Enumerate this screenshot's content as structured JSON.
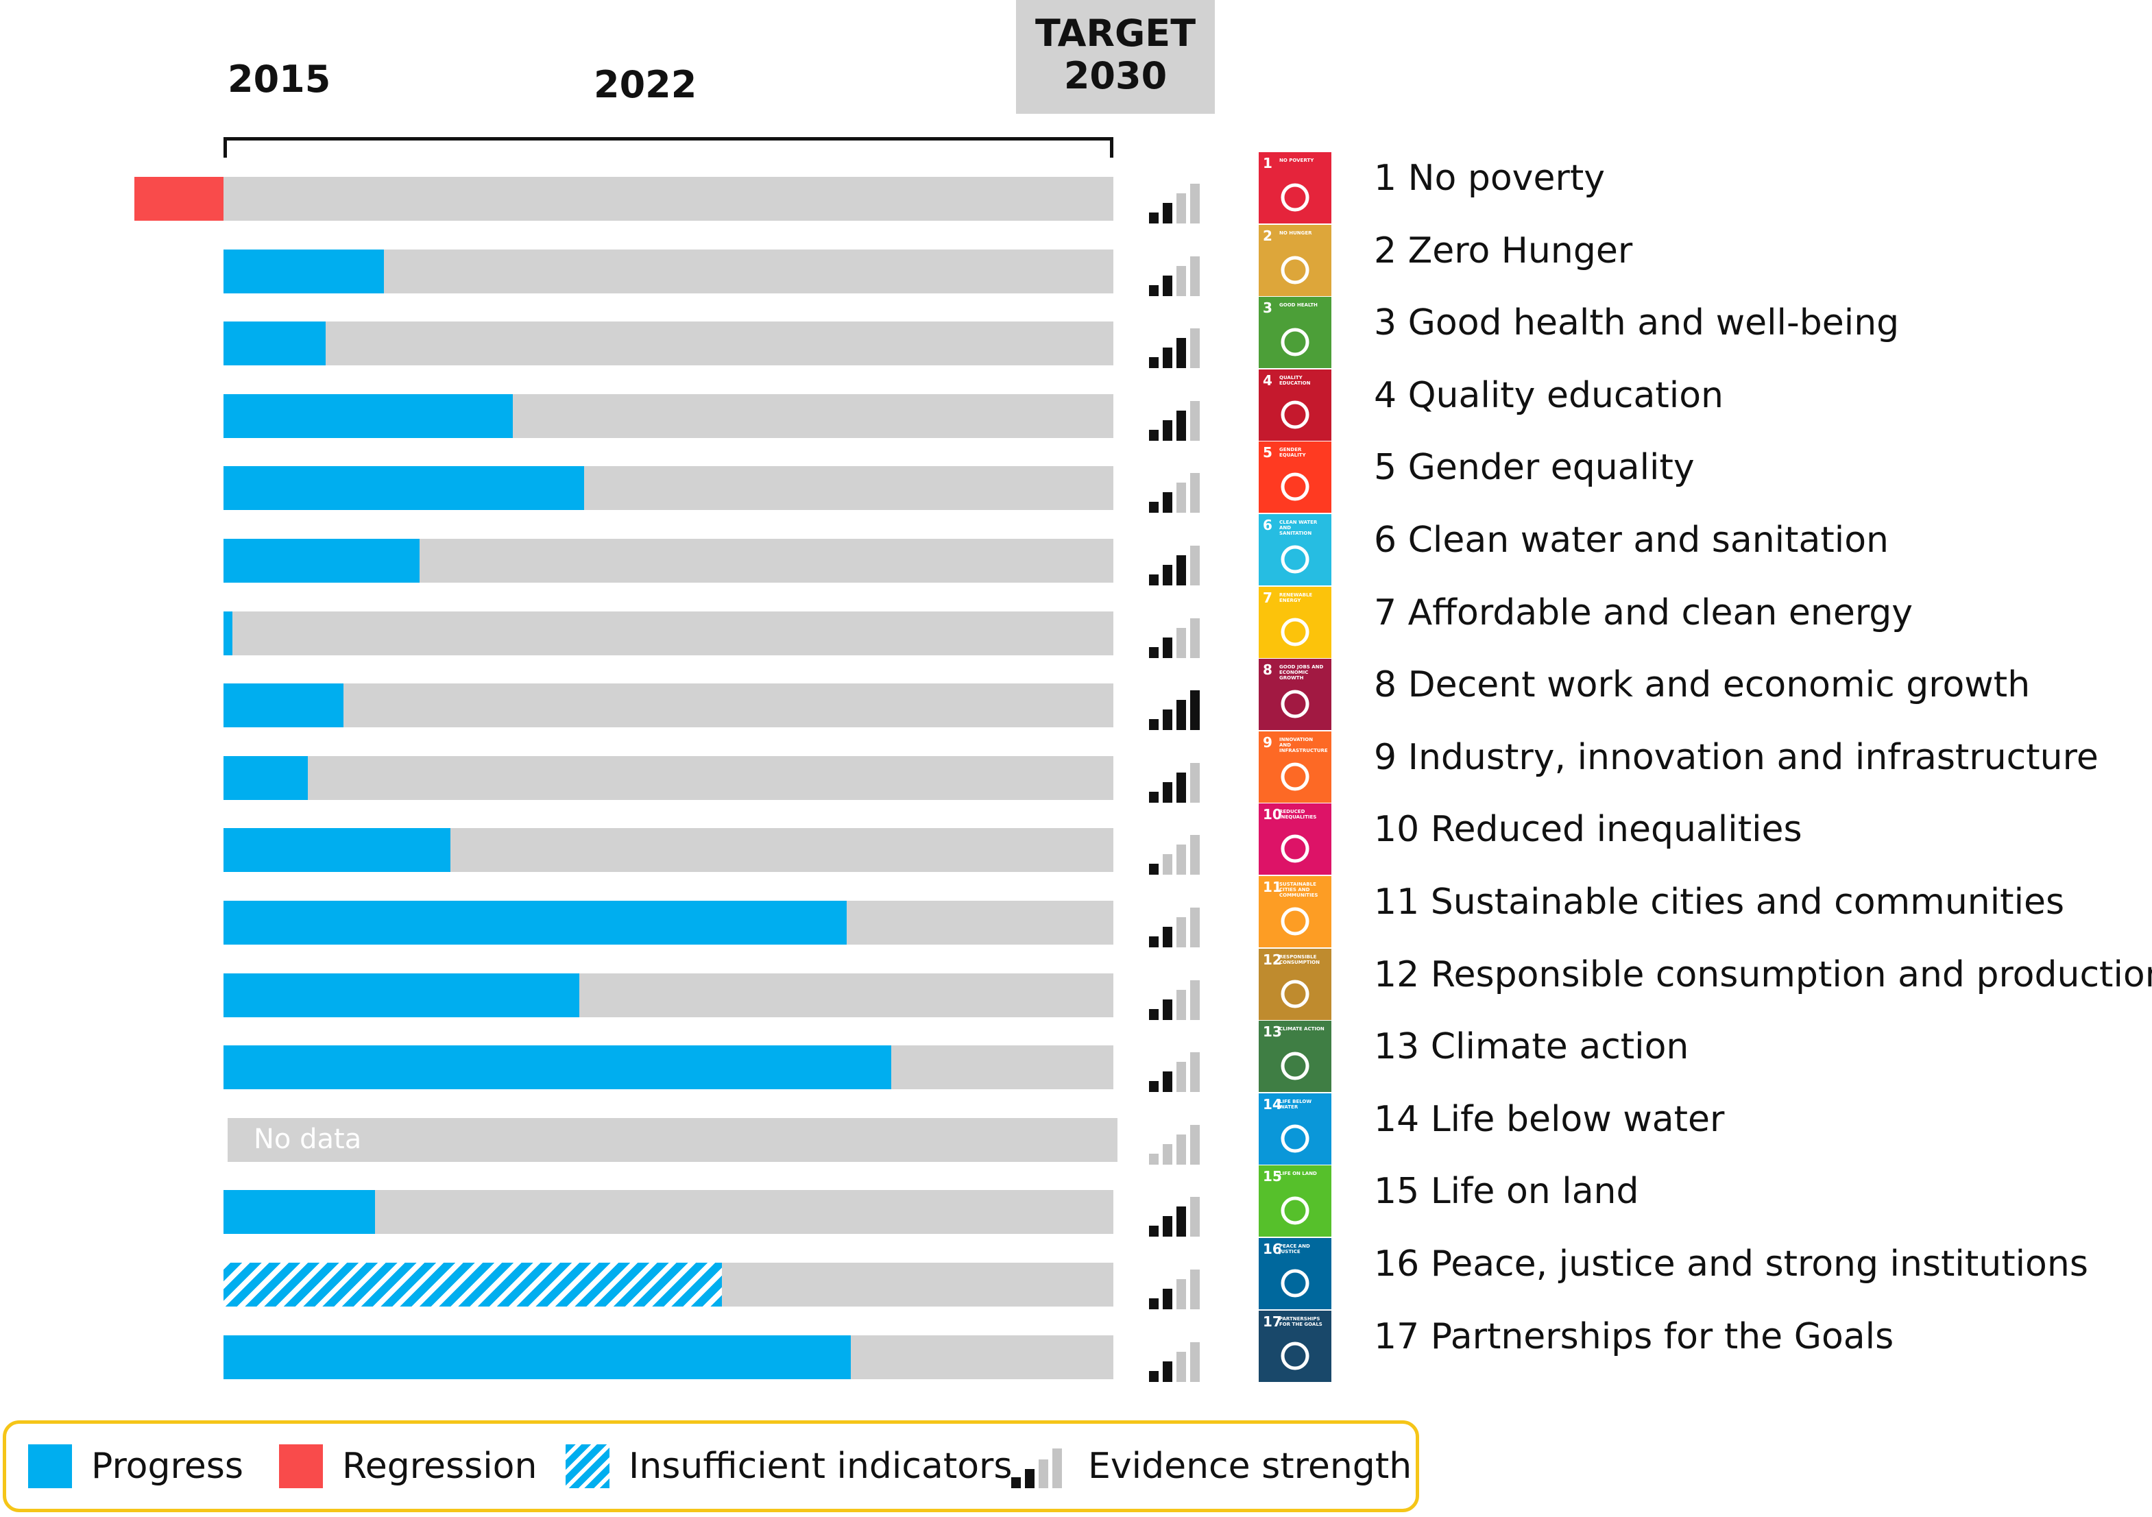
{
  "chart_data": {
    "type": "bar",
    "header": {
      "start": "2015",
      "mid": "2022",
      "target_line1": "TARGET",
      "target_line2": "2030"
    },
    "categories": [
      "1 No poverty",
      "2 Zero Hunger",
      "3 Good health and well-being",
      "4 Quality education",
      "5 Gender equality",
      "6 Clean water and sanitation",
      "7 Affordable and clean energy",
      "8 Decent work and economic growth",
      "9 Industry, innovation and infrastructure",
      "10 Reduced inequalities",
      "11 Sustainable cities and communities",
      "12 Responsible consumption and production",
      "13 Climate action",
      "14 Life below water",
      "15 Life on land",
      "16 Peace, justice and strong institutions",
      "17 Partnerships for the Goals"
    ],
    "values": [
      -4,
      18,
      11.5,
      32.5,
      40.5,
      22,
      1,
      13.5,
      9.5,
      25.5,
      70,
      40,
      75,
      null,
      17,
      56,
      70.5
    ],
    "status": [
      "regression",
      "progress",
      "progress",
      "progress",
      "progress",
      "progress",
      "progress",
      "progress",
      "progress",
      "progress",
      "progress",
      "progress",
      "progress",
      "nodata",
      "progress",
      "insufficient",
      "progress"
    ],
    "evidence_strength": [
      2,
      2,
      3,
      3,
      2,
      3,
      2,
      4,
      3,
      1,
      2,
      2,
      2,
      0,
      3,
      2,
      2
    ],
    "no_data_label": "No data",
    "xlim": [
      0,
      100
    ],
    "tiles": [
      {
        "num": "1",
        "mini": "NO POVERTY",
        "color": "#e5243b"
      },
      {
        "num": "2",
        "mini": "NO HUNGER",
        "color": "#dda63a"
      },
      {
        "num": "3",
        "mini": "GOOD HEALTH",
        "color": "#4c9f38"
      },
      {
        "num": "4",
        "mini": "QUALITY EDUCATION",
        "color": "#c5192d"
      },
      {
        "num": "5",
        "mini": "GENDER EQUALITY",
        "color": "#ff3a21"
      },
      {
        "num": "6",
        "mini": "CLEAN WATER AND SANITATION",
        "color": "#26bde2"
      },
      {
        "num": "7",
        "mini": "RENEWABLE ENERGY",
        "color": "#fcc30b"
      },
      {
        "num": "8",
        "mini": "GOOD JOBS AND ECONOMIC GROWTH",
        "color": "#a21942"
      },
      {
        "num": "9",
        "mini": "INNOVATION AND INFRASTRUCTURE",
        "color": "#fd6925"
      },
      {
        "num": "10",
        "mini": "REDUCED INEQUALITIES",
        "color": "#dd1367"
      },
      {
        "num": "11",
        "mini": "SUSTAINABLE CITIES AND COMMUNITIES",
        "color": "#fd9d24"
      },
      {
        "num": "12",
        "mini": "RESPONSIBLE CONSUMPTION",
        "color": "#bf8b2e"
      },
      {
        "num": "13",
        "mini": "CLIMATE ACTION",
        "color": "#3f7e44"
      },
      {
        "num": "14",
        "mini": "LIFE BELOW WATER",
        "color": "#0a97d9"
      },
      {
        "num": "15",
        "mini": "LIFE ON LAND",
        "color": "#56c02b"
      },
      {
        "num": "16",
        "mini": "PEACE AND JUSTICE",
        "color": "#00689d"
      },
      {
        "num": "17",
        "mini": "PARTNERSHIPS FOR THE GOALS",
        "color": "#19486a"
      }
    ],
    "legend": {
      "progress": "Progress",
      "regression": "Regression",
      "insufficient": "Insufficient indicators",
      "evidence": "Evidence strength"
    },
    "colors": {
      "progress": "#00aeef",
      "regression": "#f94b4b",
      "track": "#d2d2d2",
      "legend_border": "#f5c518",
      "signal_on": "#111111",
      "signal_off": "#c4c4c4"
    }
  }
}
